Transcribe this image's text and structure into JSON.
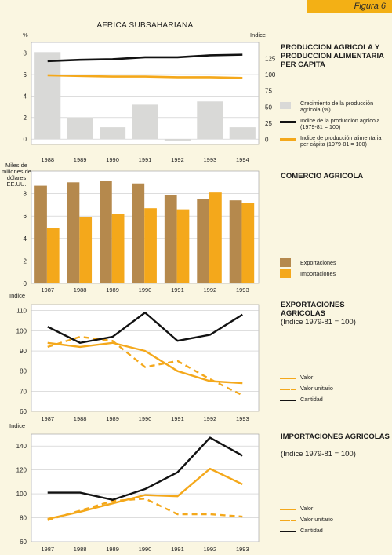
{
  "figure_label": "Figura 6",
  "main_title": "AFRICA SUBSAHARIANA",
  "colors": {
    "gray_bar": "#d9d9d7",
    "black_line": "#121212",
    "orange": "#f4a81b",
    "brown": "#b5894d",
    "plot_bg": "#ffffff",
    "page_bg": "#faf6e1",
    "grid": "#c9c9c9"
  },
  "panels": {
    "production": {
      "title": "PRODUCCION AGRICOLA Y PRODUCCION ALIMENTARIA PER CAPITA",
      "left_unit": "%",
      "right_unit": "Indice",
      "legend": [
        "Crecimiento de la producción agrícola (%)",
        "Indice de la producción agrícola (1979-81 = 100)",
        "Indice de producción alimentaria per cápita (1979-81 = 100)"
      ]
    },
    "trade": {
      "title": "COMERCIO AGRICOLA",
      "ylabel": "Miles de millones de dólares EE.UU.",
      "legend": [
        "Exportaciones",
        "Importaciones"
      ]
    },
    "exports": {
      "title": "EXPORTACIONES AGRICOLAS",
      "subtitle": "(Indice 1979-81 = 100)",
      "ylabel": "Indice",
      "legend": [
        "Valor",
        "Valor unitario",
        "Cantidad"
      ]
    },
    "imports": {
      "title": "IMPORTACIONES AGRICOLAS",
      "subtitle": "(Indice 1979-81 = 100)",
      "ylabel": "Indice",
      "legend": [
        "Valor",
        "Valor unitario",
        "Cantidad"
      ]
    }
  },
  "chart_data": [
    {
      "type": "bar",
      "x": [
        "1988",
        "1989",
        "1990",
        "1991",
        "1992",
        "1993",
        "1994"
      ],
      "ylim": [
        -0.5,
        9
      ],
      "yticks": [
        0,
        2,
        4,
        6,
        8
      ],
      "y2lim": [
        -8,
        150
      ],
      "y2ticks": [
        0,
        25,
        50,
        75,
        100,
        125
      ],
      "grid": true,
      "series": [
        {
          "name": "Crecimiento de la producción agrícola (%)",
          "kind": "bar",
          "axis": "left",
          "values": [
            8.1,
            2.0,
            1.1,
            3.2,
            -0.2,
            3.5,
            1.1
          ]
        },
        {
          "name": "Indice de la producción agrícola (1979-81 = 100)",
          "kind": "line",
          "axis": "right",
          "values": [
            121,
            123,
            124,
            127,
            127,
            130,
            131
          ]
        },
        {
          "name": "Indice de producción alimentaria per cápita (1979-81 = 100)",
          "kind": "line",
          "axis": "right",
          "values": [
            99,
            98,
            97,
            97,
            96,
            96,
            95
          ]
        }
      ]
    },
    {
      "type": "bar",
      "x": [
        "1987",
        "1988",
        "1989",
        "1990",
        "1991",
        "1992",
        "1993"
      ],
      "ylim": [
        0,
        10
      ],
      "yticks": [
        0,
        2,
        4,
        6,
        8
      ],
      "grid": true,
      "series": [
        {
          "name": "Exportaciones",
          "values": [
            8.7,
            9.0,
            9.1,
            8.9,
            7.9,
            7.5,
            7.4
          ]
        },
        {
          "name": "Importaciones",
          "values": [
            4.9,
            5.9,
            6.2,
            6.7,
            6.6,
            8.1,
            7.2
          ]
        }
      ]
    },
    {
      "type": "line",
      "x": [
        "1987",
        "1988",
        "1989",
        "1990",
        "1991",
        "1992",
        "1993"
      ],
      "ylim": [
        60,
        113
      ],
      "yticks": [
        60,
        70,
        80,
        90,
        100,
        110
      ],
      "grid": true,
      "series": [
        {
          "name": "Valor",
          "values": [
            94,
            92,
            94,
            90,
            80,
            75,
            74
          ]
        },
        {
          "name": "Valor unitario",
          "values": [
            92,
            97,
            95,
            82,
            85,
            76,
            68
          ]
        },
        {
          "name": "Cantidad",
          "values": [
            102,
            94,
            97,
            109,
            95,
            98,
            108
          ]
        }
      ]
    },
    {
      "type": "line",
      "x": [
        "1987",
        "1988",
        "1989",
        "1990",
        "1991",
        "1992",
        "1993"
      ],
      "ylim": [
        60,
        150
      ],
      "yticks": [
        60,
        80,
        100,
        120,
        140
      ],
      "grid": true,
      "series": [
        {
          "name": "Valor",
          "values": [
            79,
            85,
            92,
            99,
            98,
            121,
            108
          ]
        },
        {
          "name": "Valor unitario",
          "values": [
            78,
            86,
            94,
            96,
            83,
            83,
            81
          ]
        },
        {
          "name": "Cantidad",
          "values": [
            101,
            101,
            95,
            104,
            118,
            147,
            132
          ]
        }
      ]
    }
  ]
}
